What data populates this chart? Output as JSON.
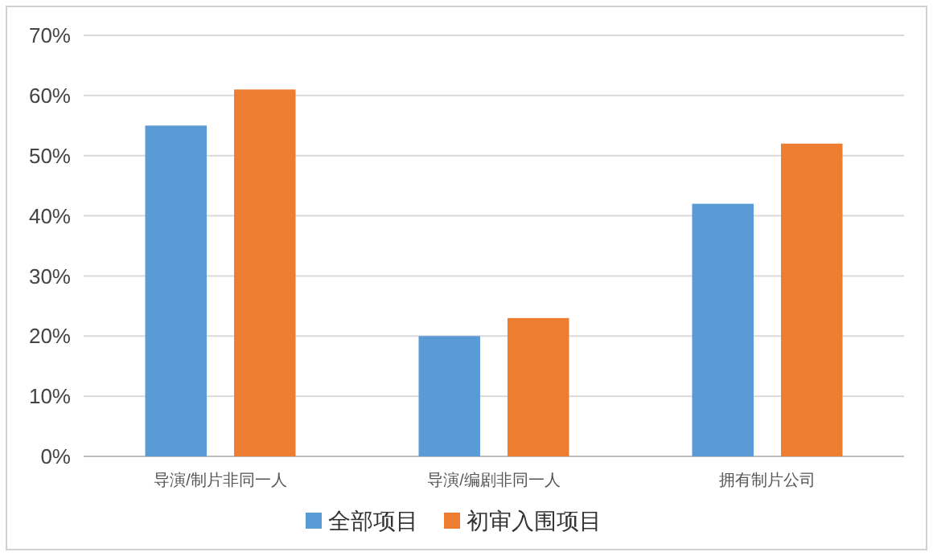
{
  "chart_data": {
    "type": "bar",
    "categories": [
      "导演/制片非同一人",
      "导演/编剧非同一人",
      "拥有制片公司"
    ],
    "series": [
      {
        "name": "全部项目",
        "color": "#5b9bd5",
        "values": [
          55,
          20,
          42
        ]
      },
      {
        "name": "初审入围项目",
        "color": "#ed7d31",
        "values": [
          61,
          23,
          52
        ]
      }
    ],
    "ylim": [
      0,
      70
    ],
    "yticks": [
      {
        "value": 0,
        "label": "0%"
      },
      {
        "value": 10,
        "label": "10%"
      },
      {
        "value": 20,
        "label": "20%"
      },
      {
        "value": 30,
        "label": "30%"
      },
      {
        "value": 40,
        "label": "40%"
      },
      {
        "value": 50,
        "label": "50%"
      },
      {
        "value": 60,
        "label": "60%"
      },
      {
        "value": 70,
        "label": "70%"
      }
    ],
    "grid": "y",
    "legend": "bottom"
  }
}
